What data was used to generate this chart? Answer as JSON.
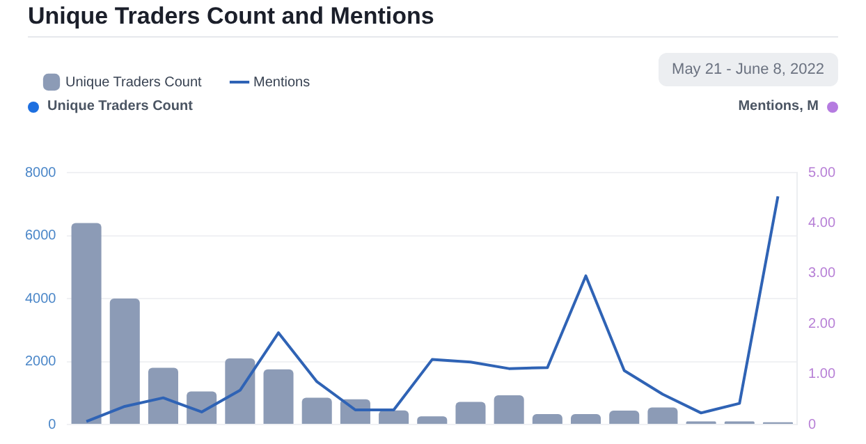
{
  "chart_data": {
    "type": "bar",
    "title": "Unique Traders Count and Mentions",
    "categories": [
      null,
      null,
      null,
      null,
      null,
      null,
      null,
      null,
      null,
      null,
      null,
      null,
      null,
      null,
      null,
      null,
      null,
      null,
      null
    ],
    "series": [
      {
        "name": "Unique Traders Count",
        "axis": "y",
        "color": "#8c9bb6",
        "values": [
          6400,
          4000,
          1800,
          1050,
          2100,
          1750,
          850,
          800,
          450,
          260,
          720,
          930,
          330,
          330,
          440,
          540,
          100,
          100,
          70
        ]
      },
      {
        "name": "Mentions",
        "type": "line",
        "axis": "y2",
        "color": "#2f63b5",
        "values": [
          0.06,
          0.36,
          0.53,
          0.25,
          0.68,
          1.82,
          0.85,
          0.29,
          0.29,
          1.29,
          1.24,
          1.11,
          1.13,
          2.95,
          1.07,
          0.6,
          0.23,
          0.42,
          4.53
        ]
      }
    ],
    "ylabel": "Unique Traders Count",
    "y2label": "Mentions, M",
    "ylim": [
      0,
      8000
    ],
    "yticks": [
      0,
      2000,
      4000,
      6000,
      8000
    ],
    "y2lim": [
      0,
      5
    ],
    "y2ticks": [
      0,
      {
        "value": 1,
        "label": "1.00"
      },
      {
        "value": 2,
        "label": "2.00"
      },
      {
        "value": 3,
        "label": "3.00"
      },
      {
        "value": 4,
        "label": "4.00"
      },
      {
        "value": 5,
        "label": "5.00"
      }
    ],
    "annotations": [
      "May 21 - June 8, 2022"
    ],
    "grid": "y",
    "legend": "top left",
    "tick_labels": "y",
    "marker": "none",
    "line_style": "solid"
  }
}
